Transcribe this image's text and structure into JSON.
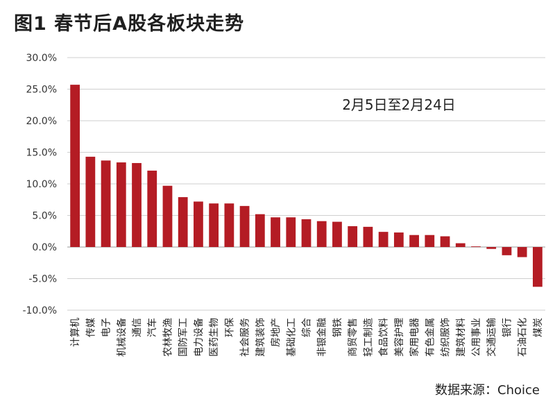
{
  "title": "图1  春节后A股各板块走势",
  "source": "数据来源：Choice",
  "chart_data": {
    "type": "bar",
    "annotation": "2月5日至2月24日",
    "ylim": [
      -10,
      30
    ],
    "yticks": [
      -10,
      -5,
      0,
      5,
      10,
      15,
      20,
      25,
      30
    ],
    "ytick_labels": [
      "-10.0%",
      "-5.0%",
      "0.0%",
      "5.0%",
      "10.0%",
      "15.0%",
      "20.0%",
      "25.0%",
      "30.0%"
    ],
    "grid": true,
    "bar_color": "#b41c24",
    "categories": [
      "计算机",
      "传媒",
      "电子",
      "机械设备",
      "通信",
      "汽车",
      "农林牧渔",
      "国防军工",
      "电力设备",
      "医药生物",
      "环保",
      "社会服务",
      "建筑装饰",
      "房地产",
      "基础化工",
      "综合",
      "非银金融",
      "钢铁",
      "商贸零售",
      "轻工制造",
      "食品饮料",
      "美容护理",
      "家用电器",
      "有色金属",
      "纺织服饰",
      "建筑材料",
      "公用事业",
      "交通运输",
      "银行",
      "石油石化",
      "煤炭"
    ],
    "values": [
      25.7,
      14.3,
      13.7,
      13.4,
      13.3,
      12.1,
      9.7,
      7.9,
      7.2,
      6.9,
      6.9,
      6.5,
      5.2,
      4.7,
      4.7,
      4.4,
      4.1,
      4.0,
      3.3,
      3.2,
      2.4,
      2.3,
      1.9,
      1.9,
      1.7,
      0.6,
      0.1,
      -0.3,
      -1.3,
      -1.6,
      -6.3
    ]
  }
}
